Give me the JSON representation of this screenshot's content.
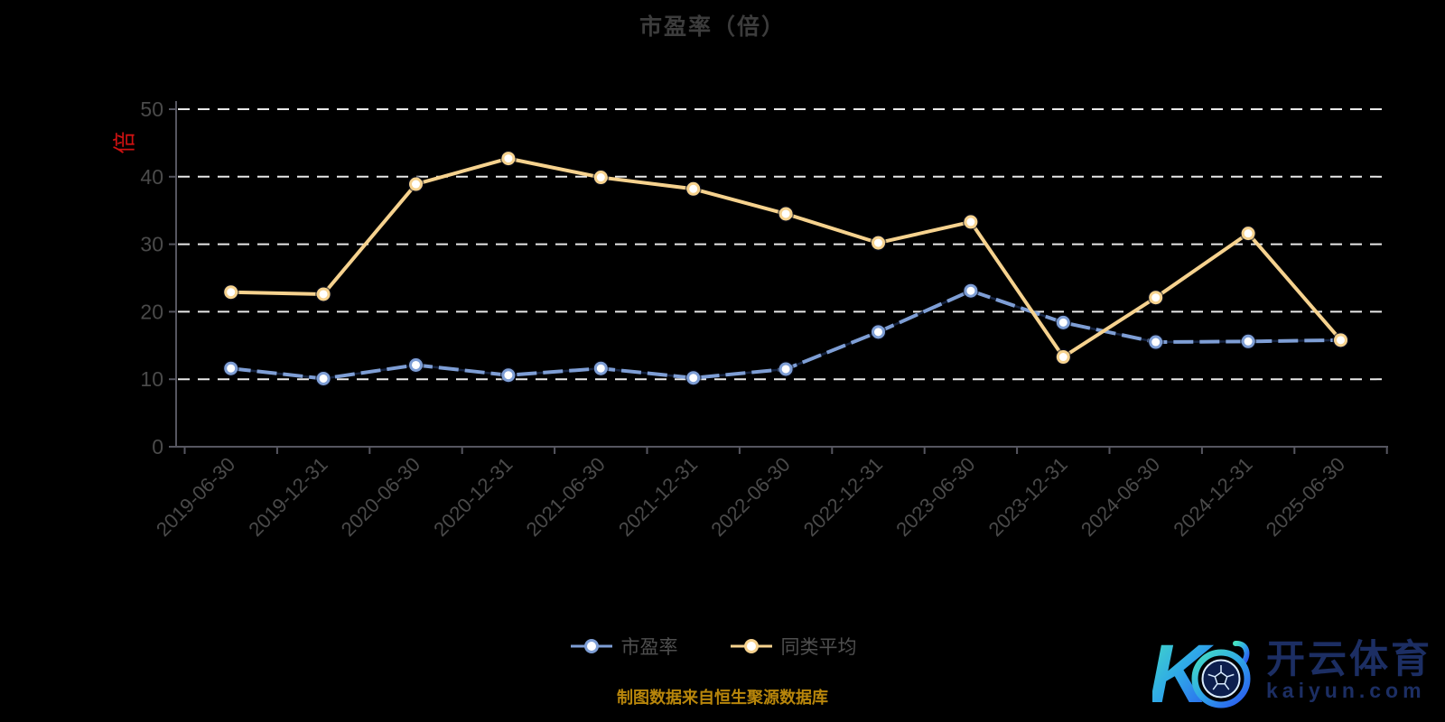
{
  "title": "市盈率（倍）",
  "y_axis_unit_label": "倍",
  "caption": "制图数据来自恒生聚源数据库",
  "legend": [
    {
      "name": "市盈率",
      "color": "#7e9ed5"
    },
    {
      "name": "同类平均",
      "color": "#f6d28e"
    }
  ],
  "watermark": {
    "logo_letter": "K",
    "brand": "开云体育",
    "domain": "kaiyun.com"
  },
  "colors": {
    "background": "#000000",
    "title_text": "#3c3c3c",
    "axis_label": "#4a4a4a",
    "legend_text": "#4f4f4f",
    "gridline": "#e8e8e8",
    "axis_line": "#565660",
    "pe_line": "#7e9ed5",
    "pe_line_dark": "#14223f",
    "peer_line": "#f6d28e",
    "marker_fill": "#ffffff",
    "unit_red": "#cf1212",
    "caption_gold": "#b8860b",
    "watermark_navy": "#1c2e63",
    "logo_grad_start": "#45e0c0",
    "logo_grad_mid": "#2fa8e8",
    "logo_grad_end": "#2b5cf0"
  },
  "chart_data": {
    "type": "line",
    "title": "市盈率（倍）",
    "categories": [
      "2019-06-30",
      "2019-12-31",
      "2020-06-30",
      "2020-12-31",
      "2021-06-30",
      "2021-12-31",
      "2022-06-30",
      "2022-12-31",
      "2023-06-30",
      "2023-12-31",
      "2024-06-30",
      "2024-12-31",
      "2025-06-30"
    ],
    "series": [
      {
        "name": "市盈率",
        "color": "#7e9ed5",
        "line_style": "dashed",
        "values": [
          11.6,
          10.1,
          12.1,
          10.6,
          11.6,
          10.2,
          11.5,
          17.0,
          23.1,
          18.4,
          15.5,
          15.6,
          15.8
        ]
      },
      {
        "name": "同类平均",
        "color": "#f6d28e",
        "line_style": "solid",
        "values": [
          22.9,
          22.6,
          38.9,
          42.7,
          39.9,
          38.2,
          34.5,
          30.2,
          33.3,
          13.3,
          22.1,
          31.6,
          15.8
        ]
      }
    ],
    "xlabel": "",
    "ylabel": "倍",
    "ylim": [
      0,
      50
    ],
    "y_ticks": [
      0,
      10,
      20,
      30,
      40,
      50
    ],
    "grid": "horizontal-dashed-white",
    "x_label_rotation": 45,
    "legend_position": "bottom"
  }
}
